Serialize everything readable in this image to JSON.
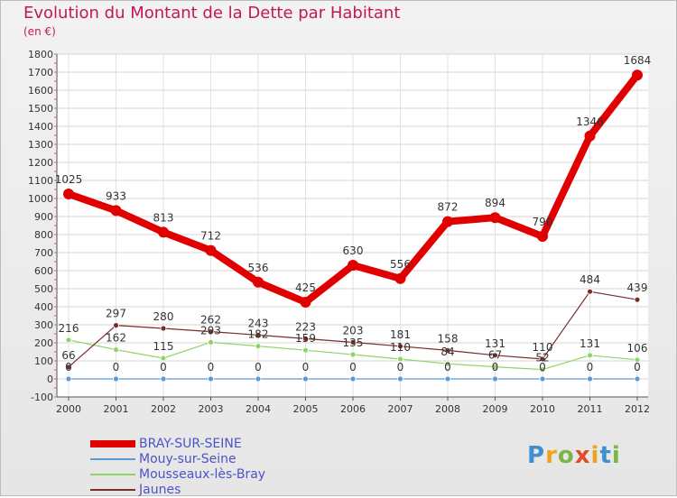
{
  "title": "Evolution du Montant de la Dette par Habitant",
  "unit": "(en €)",
  "logo": {
    "text": "Proxiti",
    "letters": [
      "P",
      "r",
      "o",
      "x",
      "i",
      "t",
      "i"
    ],
    "colors": [
      "#3f8fd1",
      "#f0a21f",
      "#7ab648",
      "#e24a2a",
      "#f0a21f",
      "#3f8fd1",
      "#7ab648"
    ]
  },
  "chart_data": {
    "type": "line",
    "x": [
      "2000",
      "2001",
      "2002",
      "2003",
      "2004",
      "2005",
      "2006",
      "2007",
      "2008",
      "2009",
      "2010",
      "2011",
      "2012"
    ],
    "ylim": [
      -100,
      1800
    ],
    "yticks": [
      -100,
      0,
      100,
      200,
      300,
      400,
      500,
      600,
      700,
      800,
      900,
      1000,
      1100,
      1200,
      1300,
      1400,
      1500,
      1600,
      1700,
      1800
    ],
    "grid": true,
    "legend_position": "bottom-left",
    "series": [
      {
        "name": "BRAY-SUR-SEINE",
        "color": "#e00000",
        "values": [
          1025,
          933,
          813,
          712,
          536,
          425,
          630,
          556,
          872,
          894,
          790,
          1346,
          1684
        ],
        "labels": [
          "1025",
          "933",
          "813",
          "712",
          "536",
          "425",
          "630",
          "556",
          "872",
          "894",
          "790",
          "1346",
          "1684"
        ]
      },
      {
        "name": "Mouy-sur-Seine",
        "color": "#5b9bd5",
        "values": [
          0,
          0,
          0,
          0,
          0,
          0,
          0,
          0,
          0,
          0,
          0,
          0,
          0
        ],
        "labels": [
          "0",
          "0",
          "0",
          "0",
          "0",
          "0",
          "0",
          "0",
          "0",
          "0",
          "0",
          "0",
          "0"
        ]
      },
      {
        "name": "Mousseaux-lès-Bray",
        "color": "#8fd46a",
        "values": [
          216,
          162,
          115,
          203,
          182,
          159,
          135,
          110,
          84,
          67,
          52,
          131,
          106
        ],
        "labels": [
          "216",
          "162",
          "115",
          "203",
          "182",
          "159",
          "135",
          "110",
          "84",
          "67",
          "52",
          "131",
          "106"
        ]
      },
      {
        "name": "Jaunes",
        "color": "#7a2b2b",
        "values": [
          66,
          297,
          280,
          262,
          243,
          223,
          203,
          181,
          158,
          131,
          110,
          484,
          439
        ],
        "labels": [
          "66",
          "297",
          "280",
          "262",
          "243",
          "223",
          "203",
          "181",
          "158",
          "131",
          "110",
          "484",
          "439"
        ]
      }
    ]
  }
}
